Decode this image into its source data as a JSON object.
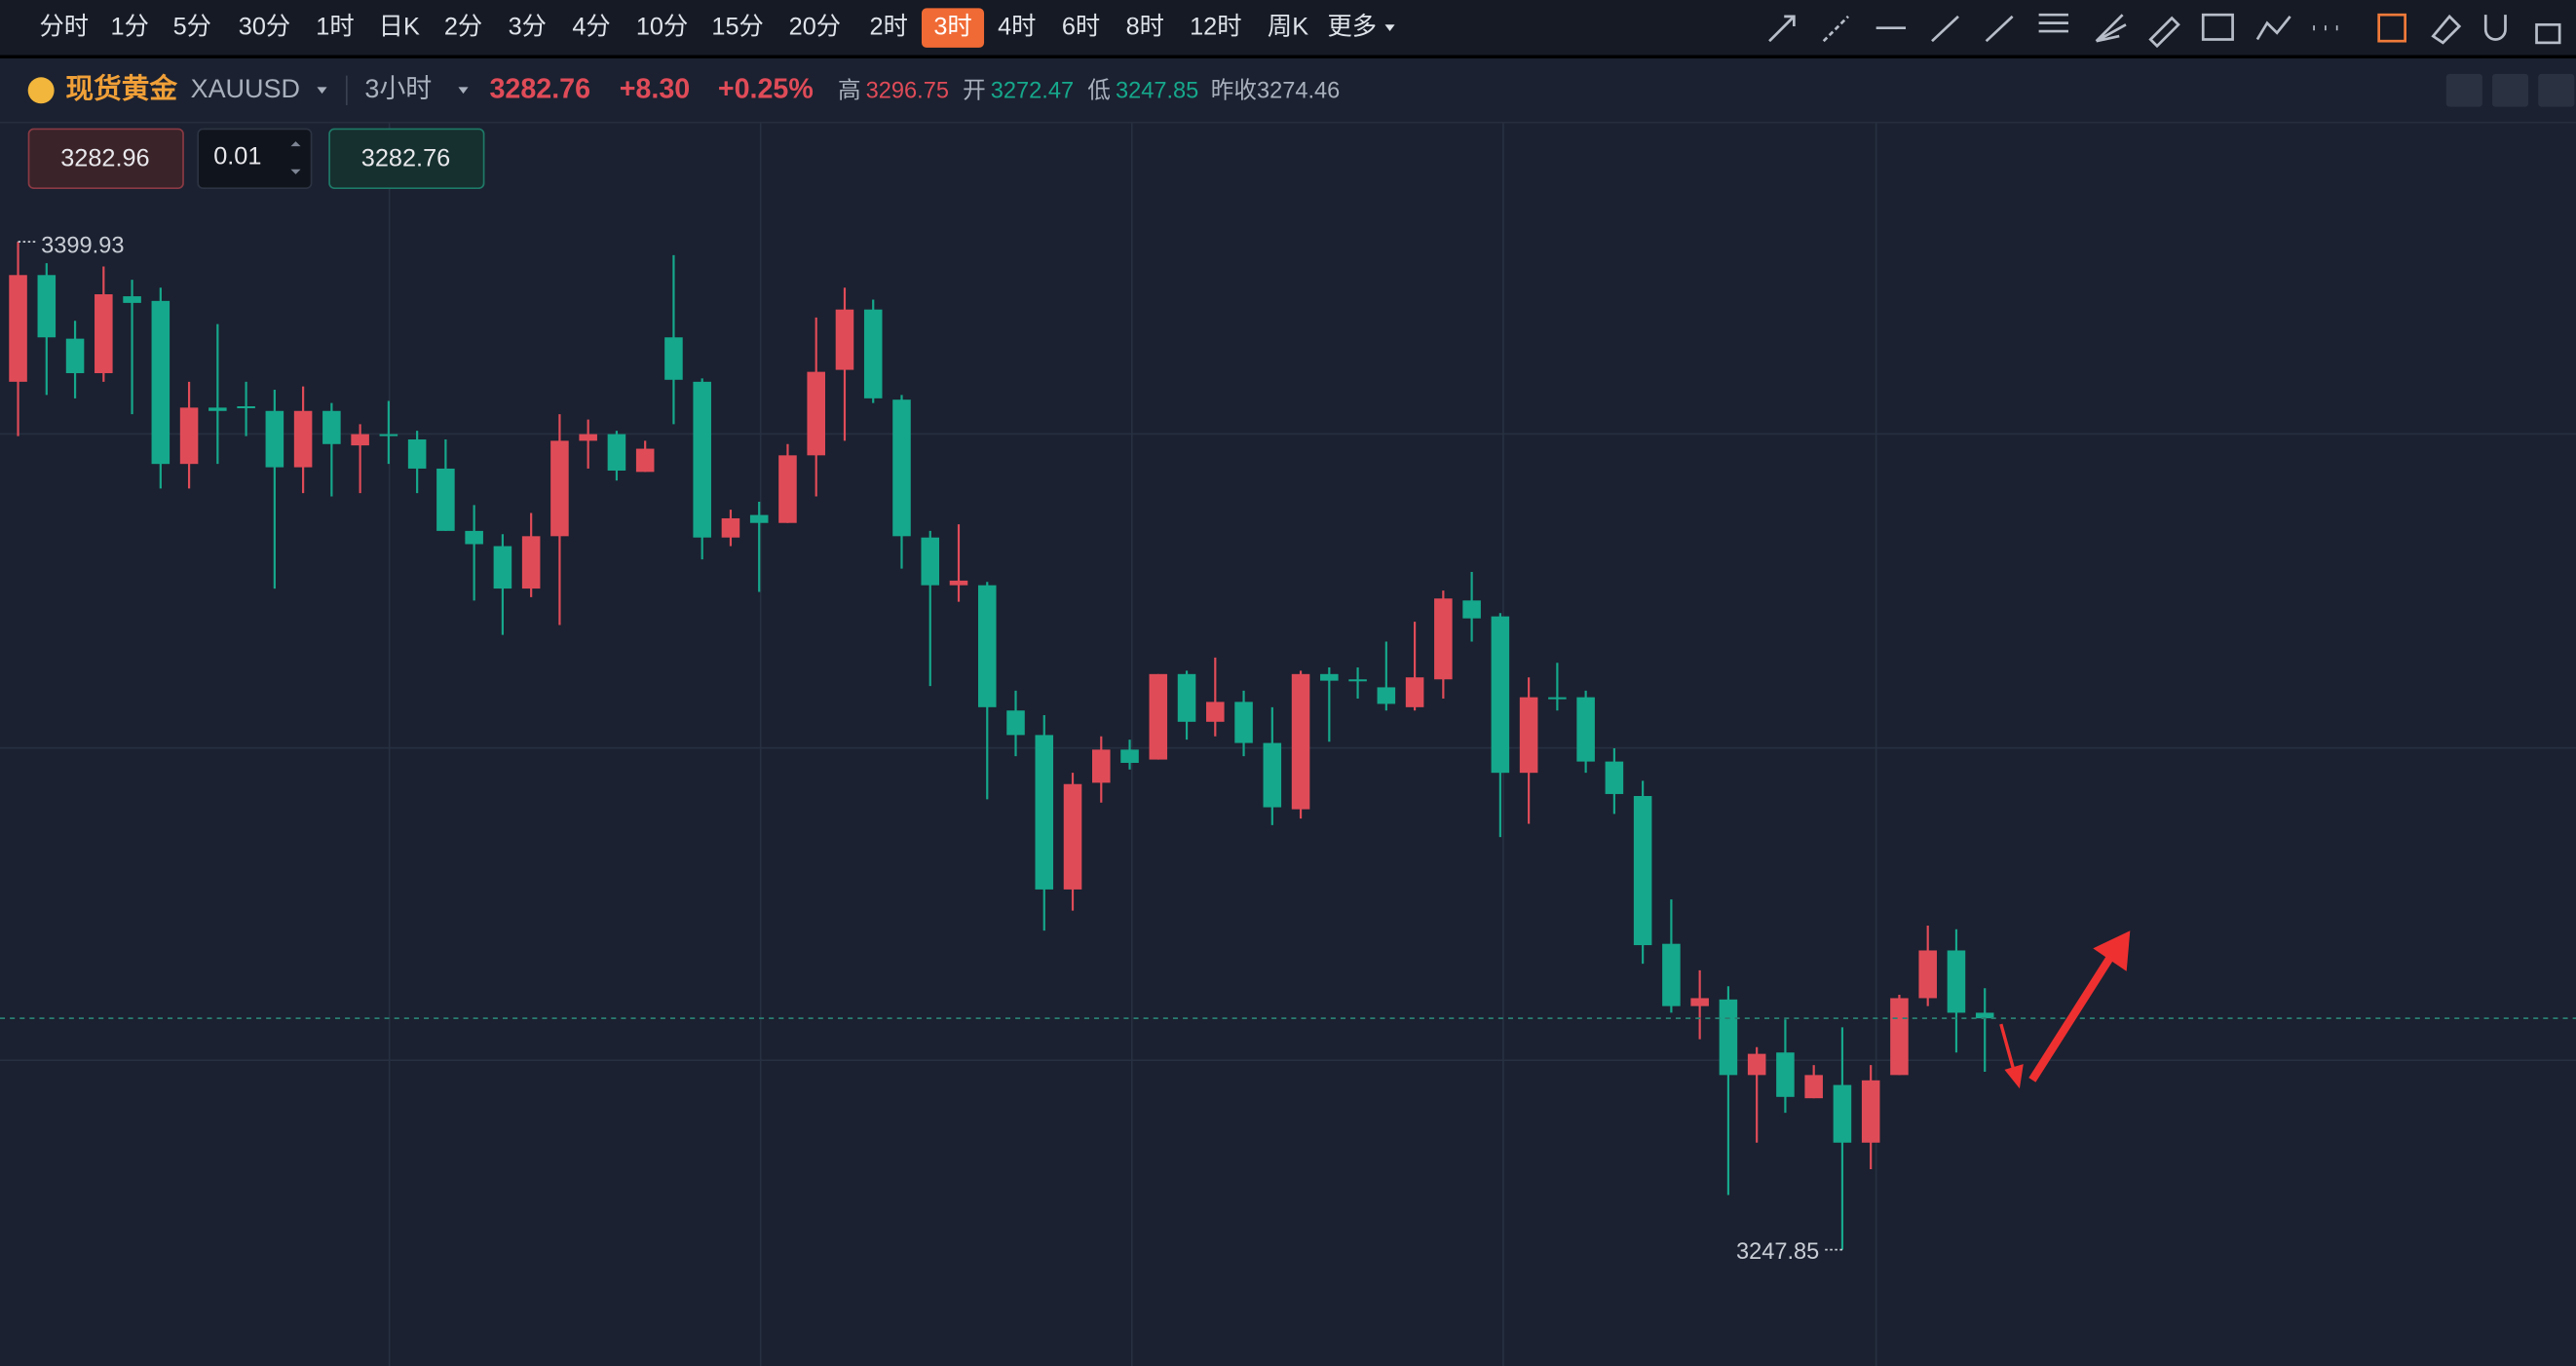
{
  "toolbar": {
    "intervals": [
      "分时",
      "1分",
      "5分",
      "30分",
      "1时",
      "日K",
      "2分",
      "3分",
      "4分",
      "10分",
      "15分",
      "20分",
      "2时",
      "3时",
      "4时",
      "6时",
      "8时",
      "12时",
      "周K",
      "更多"
    ],
    "selected_index": 13
  },
  "header": {
    "name": "现货黄金",
    "symbol": "XAUUSD",
    "period": "3小时",
    "price": "3282.76",
    "change": "+8.30",
    "change_pct": "+0.25%",
    "high_label": "高",
    "high": "3296.75",
    "open_label": "开",
    "open": "3272.47",
    "low_label": "低",
    "low": "3247.85",
    "prev_label": "昨收",
    "prev_close": "3274.46"
  },
  "order": {
    "sell": "3282.96",
    "lots": "0.01",
    "buy": "3282.76"
  },
  "chart_data": {
    "type": "candlestick",
    "up_color": "#e04b58",
    "down_color": "#16a88c",
    "ylim": [
      3230.3,
      3417.8
    ],
    "open": [
      3378.8,
      3394.9,
      3385.3,
      3380.1,
      3391.7,
      3391.0,
      3366.4,
      3374.9,
      3375.1,
      3374.4,
      3365.9,
      3374.4,
      3369.2,
      3370.9,
      3370.1,
      3365.7,
      3356.3,
      3354.0,
      3347.6,
      3355.5,
      3369.9,
      3370.9,
      3365.2,
      3385.5,
      3378.8,
      3355.3,
      3358.7,
      3357.5,
      3367.7,
      3380.6,
      3389.7,
      3376.1,
      3355.3,
      3348.1,
      3348.1,
      3329.2,
      3325.5,
      3302.2,
      3318.3,
      3323.3,
      3321.8,
      3334.7,
      3327.5,
      3330.5,
      3324.3,
      3314.3,
      3334.7,
      3333.9,
      3332.7,
      3329.7,
      3333.9,
      3345.8,
      3343.4,
      3319.8,
      3331.2,
      3331.2,
      3321.5,
      3316.3,
      3294.0,
      3284.6,
      3285.6,
      3274.2,
      3277.6,
      3270.7,
      3272.7,
      3264.0,
      3274.2,
      3285.8,
      3293.0,
      3283.6
    ],
    "high": [
      3399.93,
      3396.7,
      3388.0,
      3396.2,
      3394.2,
      3393.0,
      3378.8,
      3387.5,
      3378.8,
      3377.6,
      3378.1,
      3375.6,
      3372.4,
      3375.9,
      3371.4,
      3370.1,
      3360.2,
      3355.8,
      3359.0,
      3373.9,
      3373.1,
      3371.4,
      3369.9,
      3397.9,
      3379.3,
      3359.5,
      3360.7,
      3369.4,
      3388.5,
      3393.0,
      3391.2,
      3376.8,
      3356.3,
      3357.3,
      3348.6,
      3332.2,
      3328.5,
      3319.8,
      3325.3,
      3324.8,
      3334.7,
      3335.2,
      3337.2,
      3332.2,
      3329.7,
      3335.2,
      3335.7,
      3335.7,
      3339.6,
      3342.6,
      3347.3,
      3350.1,
      3343.9,
      3334.2,
      3336.4,
      3332.2,
      3323.5,
      3318.6,
      3300.7,
      3290.0,
      3287.6,
      3278.4,
      3282.6,
      3275.7,
      3281.4,
      3275.7,
      3286.3,
      3296.75,
      3296.2,
      3287.3
    ],
    "low": [
      3370.6,
      3376.8,
      3376.3,
      3378.8,
      3373.9,
      3362.7,
      3362.7,
      3366.4,
      3370.6,
      3347.6,
      3362.0,
      3361.5,
      3362.0,
      3366.4,
      3362.0,
      3356.3,
      3345.8,
      3340.6,
      3346.3,
      3342.1,
      3365.7,
      3363.9,
      3365.2,
      3372.4,
      3352.0,
      3354.0,
      3347.1,
      3357.5,
      3361.5,
      3369.9,
      3375.6,
      3350.6,
      3332.9,
      3345.6,
      3315.8,
      3322.3,
      3296.0,
      3299.0,
      3315.3,
      3320.3,
      3321.8,
      3324.8,
      3325.3,
      3322.3,
      3311.9,
      3312.9,
      3324.5,
      3331.0,
      3329.2,
      3329.2,
      3331.0,
      3339.6,
      3310.1,
      3312.1,
      3329.2,
      3319.8,
      3313.6,
      3291.0,
      3283.6,
      3279.6,
      3256.1,
      3264.0,
      3268.5,
      3270.7,
      3247.85,
      3260.0,
      3274.2,
      3284.6,
      3277.6,
      3274.7
    ],
    "close": [
      3394.9,
      3385.5,
      3380.1,
      3392.0,
      3390.7,
      3366.4,
      3374.9,
      3374.4,
      3374.9,
      3365.9,
      3374.4,
      3369.4,
      3370.9,
      3370.6,
      3365.7,
      3356.3,
      3354.3,
      3347.6,
      3355.5,
      3369.9,
      3370.9,
      3365.4,
      3368.7,
      3379.1,
      3355.3,
      3358.2,
      3357.5,
      3367.7,
      3380.3,
      3389.7,
      3376.3,
      3355.5,
      3348.1,
      3348.8,
      3329.7,
      3325.5,
      3302.2,
      3318.1,
      3323.3,
      3321.3,
      3334.7,
      3327.5,
      3330.5,
      3324.3,
      3314.6,
      3334.7,
      3333.7,
      3333.7,
      3330.2,
      3334.2,
      3346.1,
      3343.1,
      3319.8,
      3331.2,
      3331.0,
      3321.5,
      3316.6,
      3293.8,
      3284.6,
      3285.8,
      3274.2,
      3277.4,
      3270.9,
      3274.2,
      3264.0,
      3273.4,
      3285.8,
      3293.0,
      3283.6,
      3282.76
    ]
  }
}
